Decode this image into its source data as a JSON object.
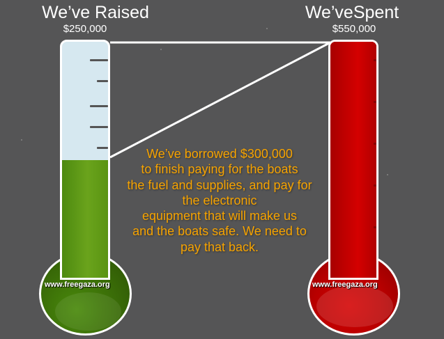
{
  "raised": {
    "title": "We’ve Raised",
    "amount": "$250,000",
    "fill_fraction": 0.5,
    "bulb_label": "www.freegaza.org",
    "color": "#5c9a14"
  },
  "spent": {
    "title": "We’veSpent",
    "amount": "$550,000",
    "fill_fraction": 1.0,
    "bulb_label": "www.freegaza.org",
    "color": "#c20000"
  },
  "message": {
    "lines": [
      "We’ve borrowed $300,000",
      "to finish paying for the boats",
      "the fuel and supplies, and pay for",
      "the electronic",
      "equipment that will make us",
      "and the boats safe. We need to",
      "pay that back."
    ],
    "color": "#f6a300"
  },
  "colors": {
    "background": "#555556",
    "tube_empty": "#d6e8f0"
  }
}
